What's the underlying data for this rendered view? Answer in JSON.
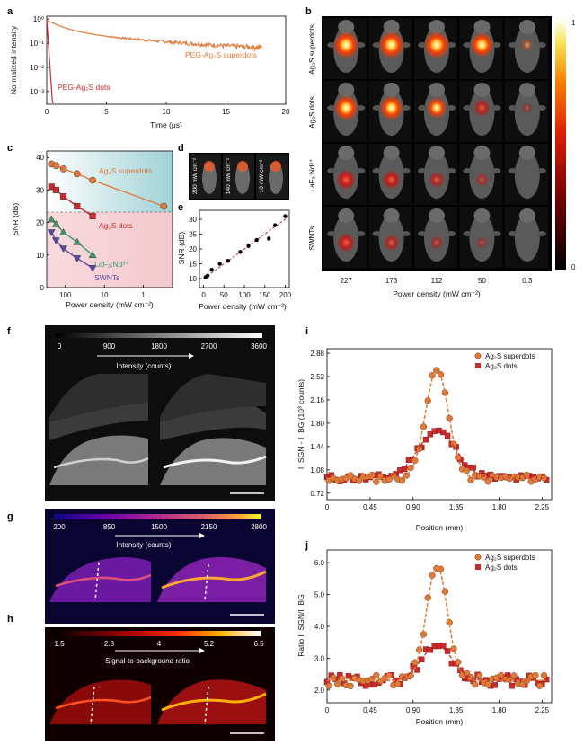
{
  "panel_labels": {
    "a": "a",
    "b": "b",
    "c": "c",
    "d": "d",
    "e": "e",
    "f": "f",
    "g": "g",
    "h": "h",
    "i": "i",
    "j": "j"
  },
  "colors": {
    "superdots": "#e07a3a",
    "dots": "#cc2a2a",
    "laf": "#3a9a6a",
    "swnt": "#5a4aa6",
    "teal_bg": "#b7dfe0",
    "pink_bg": "#f6d3d6"
  },
  "panel_a": {
    "ylabel": "Normalized intensity",
    "xlabel": "Time (μs)",
    "yticks": [
      "10⁰",
      "10⁻¹",
      "10⁻²",
      "10⁻³"
    ],
    "xticks": [
      "0",
      "5",
      "10",
      "15",
      "20"
    ],
    "legend_superdots": "PEG-Ag₂S superdots",
    "legend_dots": "PEG-Ag₂S dots"
  },
  "panel_b": {
    "rows": [
      "Ag₂S superdots",
      "Ag₂S dots",
      "LaF₃:Nd³⁺",
      "SWNTs"
    ],
    "cols": [
      "227",
      "173",
      "112",
      "50",
      "0.3"
    ],
    "xlabel": "Power density (mW cm⁻²)",
    "scale_max": "1",
    "scale_min": "0",
    "intensity": [
      [
        0.95,
        0.95,
        0.95,
        0.8,
        0.1
      ],
      [
        0.85,
        0.8,
        0.6,
        0.4,
        0.05
      ],
      [
        0.55,
        0.5,
        0.35,
        0.2,
        0.0
      ],
      [
        0.5,
        0.35,
        0.2,
        0.1,
        0.0
      ]
    ]
  },
  "panel_c": {
    "ylabel": "SNR (dB)",
    "xlabel": "Power density (mW cm⁻²)",
    "yticks": [
      "0",
      "10",
      "20",
      "30",
      "40"
    ],
    "xticks": [
      "100",
      "10",
      "1"
    ],
    "label_superdots": "Ag₂S superdots",
    "label_dots": "Ag₂S dots",
    "label_laf": "LaF₃:Nd³⁺",
    "label_swnt": "SWNTs"
  },
  "panel_d": {
    "labels": [
      "200 mW cm⁻²",
      "140 mW cm⁻²",
      "10 mW cm⁻²"
    ]
  },
  "panel_e": {
    "ylabel": "SNR (dB)",
    "xlabel": "Power density (mW cm⁻²)",
    "yticks": [
      "10",
      "15",
      "20",
      "25",
      "30"
    ],
    "xticks": [
      "0",
      "50",
      "100",
      "150",
      "200"
    ]
  },
  "panel_f": {
    "ticks": [
      "0",
      "900",
      "1800",
      "2700",
      "3600"
    ],
    "title": "Intensity (counts)"
  },
  "panel_g": {
    "ticks": [
      "200",
      "850",
      "1500",
      "2150",
      "2800"
    ],
    "title": "Intensity (counts)"
  },
  "panel_h": {
    "ticks": [
      "1.5",
      "2.8",
      "4",
      "5.2",
      "6.5"
    ],
    "title": "Signal-to-background ratio"
  },
  "panel_i": {
    "ylabel": "I_SGN - I_BG (10³ counts)",
    "xlabel": "Position (mm)",
    "yticks": [
      "0.72",
      "1.08",
      "1.44",
      "1.80",
      "2.16",
      "2.52",
      "2.88"
    ],
    "xticks": [
      "0",
      "0.45",
      "0.90",
      "1.35",
      "1.80",
      "2.25"
    ],
    "legend": [
      "Ag₂S superdots",
      "Ag₂S dots"
    ]
  },
  "panel_j": {
    "ylabel": "Ratio I_SGN/I_BG",
    "xlabel": "Position (mm)",
    "yticks": [
      "2.0",
      "3.0",
      "4.0",
      "5.0",
      "6.0"
    ],
    "xticks": [
      "0",
      "0.45",
      "0.90",
      "1.35",
      "1.80",
      "2.25"
    ],
    "legend": [
      "Ag₂S superdots",
      "Ag₂S dots"
    ]
  },
  "chart_data": [
    {
      "type": "line",
      "panel": "a",
      "series": [
        {
          "name": "PEG-Ag₂S superdots",
          "decay": "multi-exponential, ~17 μs"
        },
        {
          "name": "PEG-Ag₂S dots",
          "decay": "fast, <0.5 μs"
        }
      ],
      "xlim": [
        0,
        20
      ],
      "ylog": true,
      "ylim": [
        0.0003,
        1.2
      ]
    },
    {
      "type": "scatter",
      "panel": "c",
      "x_scale": "log-reversed",
      "series": [
        {
          "name": "Ag₂S superdots",
          "x": [
            227,
            173,
            112,
            50,
            20,
            0.3
          ],
          "y": [
            38,
            37.5,
            36.5,
            35,
            33,
            25
          ]
        },
        {
          "name": "Ag₂S dots",
          "x": [
            227,
            173,
            112,
            50,
            20
          ],
          "y": [
            31,
            30,
            28,
            25,
            22
          ]
        },
        {
          "name": "LaF₃:Nd³⁺",
          "x": [
            227,
            173,
            112,
            50,
            20
          ],
          "y": [
            21,
            19.5,
            17,
            14,
            10
          ]
        },
        {
          "name": "SWNTs",
          "x": [
            227,
            173,
            112,
            50,
            20
          ],
          "y": [
            17,
            14.5,
            12,
            9,
            6
          ]
        }
      ]
    },
    {
      "type": "scatter",
      "panel": "e",
      "x": [
        5,
        10,
        20,
        40,
        60,
        90,
        110,
        130,
        160,
        175,
        200
      ],
      "y": [
        10.5,
        11,
        13,
        15,
        16,
        19,
        21,
        23,
        23.5,
        28,
        31
      ]
    },
    {
      "type": "scatter",
      "panel": "i",
      "series": [
        {
          "name": "Ag₂S superdots",
          "peak": 2.62,
          "peak_x": 1.15,
          "baseline": 0.95
        },
        {
          "name": "Ag₂S dots",
          "peak": 1.72,
          "peak_x": 1.15,
          "baseline": 0.95
        }
      ]
    },
    {
      "type": "scatter",
      "panel": "j",
      "series": [
        {
          "name": "Ag₂S superdots",
          "peak": 6.0,
          "peak_x": 1.15,
          "baseline": 2.3
        },
        {
          "name": "Ag₂S dots",
          "peak": 3.5,
          "peak_x": 1.15,
          "baseline": 2.2
        }
      ]
    }
  ]
}
